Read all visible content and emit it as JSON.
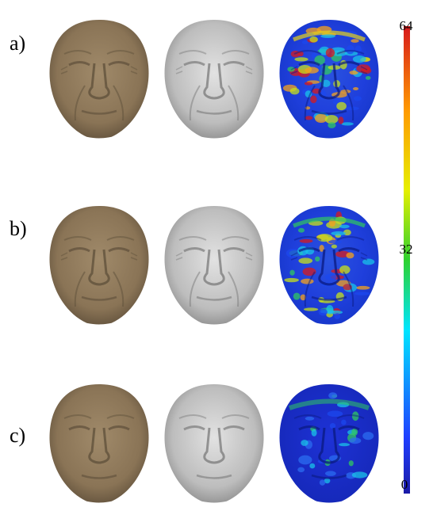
{
  "rows": [
    {
      "label": "a)",
      "variant": "wrinkled",
      "error_level": "high"
    },
    {
      "label": "b)",
      "variant": "wrinkled",
      "error_level": "medium"
    },
    {
      "label": "c)",
      "variant": "smooth",
      "error_level": "low"
    }
  ],
  "columns": [
    "textured-mesh",
    "shaded-mesh",
    "error-heatmap"
  ],
  "colors": {
    "texture": "#8f7a5c",
    "texture_dark": "#5e4f3a",
    "shaded": "#c4c4c4",
    "shaded_dark": "#7a7a7a",
    "heat_low": "#1b2fd9",
    "heat_high": "#d7191c"
  },
  "colorbar": {
    "ticks": [
      "64",
      "32",
      "0"
    ],
    "min": 0,
    "max": 64,
    "colormap": "jet"
  }
}
